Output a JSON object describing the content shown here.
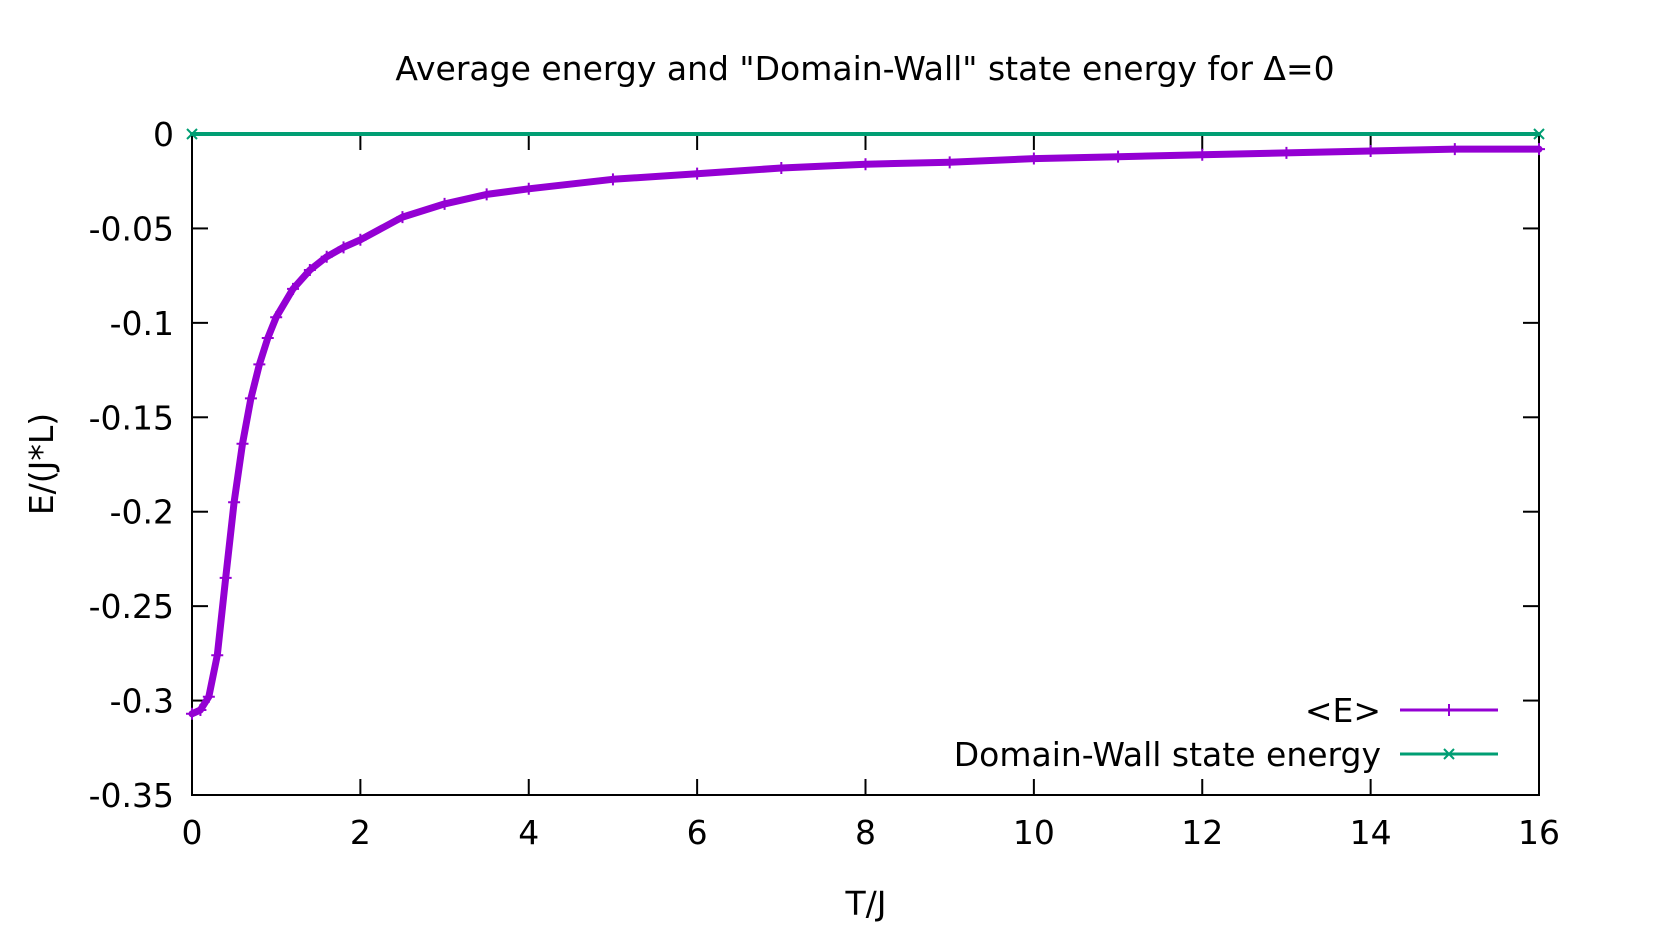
{
  "chart_data": {
    "type": "line",
    "title": "Average energy and \"Domain-Wall\" state energy for Δ=0",
    "xlabel": "T/J",
    "ylabel": "E/(J*L)",
    "xlim": [
      0,
      16
    ],
    "ylim": [
      -0.35,
      0
    ],
    "x_ticks": [
      "0",
      "2",
      "4",
      "6",
      "8",
      "10",
      "12",
      "14",
      "16"
    ],
    "y_ticks": [
      "0",
      "-0.05",
      "-0.1",
      "-0.15",
      "-0.2",
      "-0.25",
      "-0.3",
      "-0.35"
    ],
    "grid": false,
    "legend_position": "bottom-right",
    "series": [
      {
        "name": "<E>",
        "color": "#9400d3",
        "marker": "plus",
        "x": [
          0.0,
          0.1,
          0.2,
          0.3,
          0.4,
          0.5,
          0.6,
          0.7,
          0.8,
          0.9,
          1.0,
          1.2,
          1.4,
          1.6,
          1.8,
          2.0,
          2.5,
          3.0,
          3.5,
          4.0,
          5.0,
          6.0,
          7.0,
          8.0,
          9.0,
          10.0,
          11.0,
          12.0,
          13.0,
          14.0,
          15.0,
          16.0
        ],
        "y": [
          -0.307,
          -0.305,
          -0.298,
          -0.276,
          -0.235,
          -0.195,
          -0.164,
          -0.14,
          -0.122,
          -0.108,
          -0.097,
          -0.082,
          -0.072,
          -0.065,
          -0.06,
          -0.056,
          -0.044,
          -0.037,
          -0.032,
          -0.029,
          -0.024,
          -0.021,
          -0.018,
          -0.016,
          -0.015,
          -0.013,
          -0.012,
          -0.011,
          -0.01,
          -0.009,
          -0.008,
          -0.008
        ]
      },
      {
        "name": "Domain-Wall state energy",
        "color": "#009e73",
        "marker": "cross",
        "x": [
          0,
          16
        ],
        "y": [
          0,
          0
        ]
      }
    ]
  }
}
